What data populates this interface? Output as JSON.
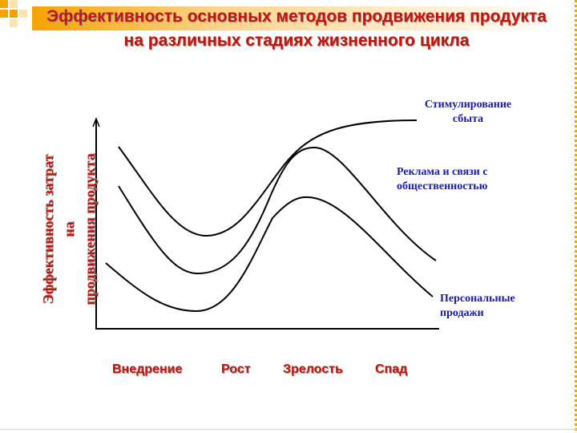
{
  "title_line1": "Эффективность основных методов продвижения продукта",
  "title_line2": "на различных стадиях жизненного цикла",
  "chart_data": {
    "type": "line",
    "title": "Эффективность основных методов продвижения продукта на различных стадиях жизненного цикла",
    "ylabel_line1": "Эффективность затрат на",
    "ylabel_line2": "продвижения продукта",
    "categories": [
      "Внедрение",
      "Рост",
      "Зрелость",
      "Спад"
    ],
    "series": [
      {
        "name": "Стимулирование сбыта",
        "label_lines": [
          "Стимулирование",
          "сбыта"
        ]
      },
      {
        "name": "Реклама и связи с общественностью",
        "label_lines": [
          "Реклама и связи с",
          "общественностью"
        ]
      },
      {
        "name": "Персональные продажи",
        "label_lines": [
          "Персональные",
          "продажи"
        ]
      }
    ],
    "line_color": "#000000",
    "label_color": "#1a1aa8",
    "title_color": "#c0160c"
  }
}
